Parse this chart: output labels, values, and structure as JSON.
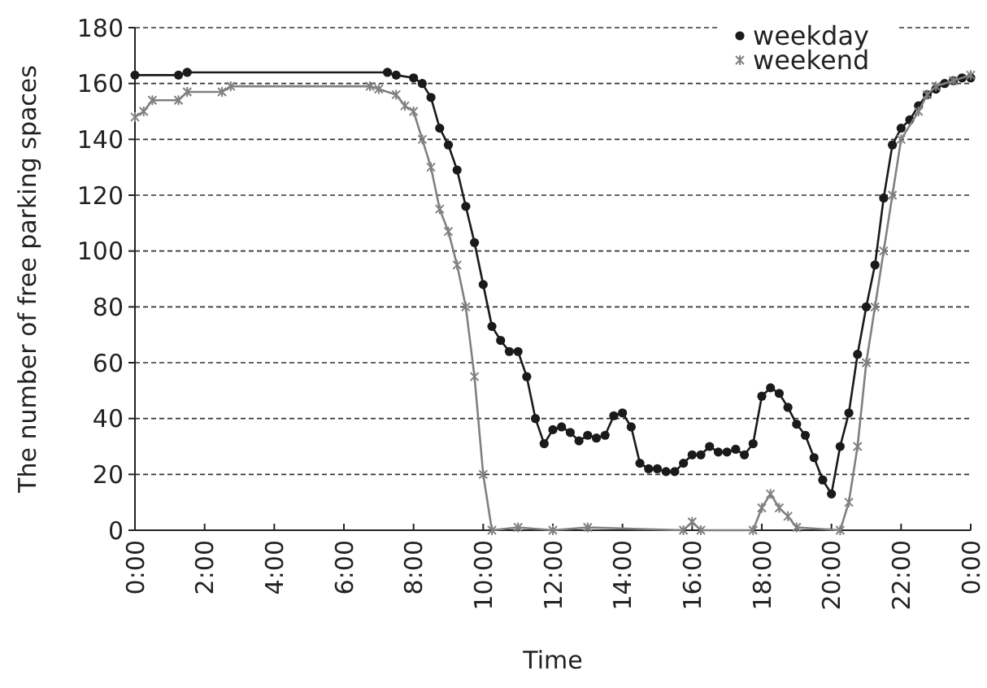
{
  "chart_data": {
    "type": "line",
    "xlabel": "Time",
    "ylabel": "The number of free parking spaces",
    "xlim": [
      0,
      24
    ],
    "xticks": [
      {
        "value": 0,
        "label": "0:00"
      },
      {
        "value": 2,
        "label": "2:00"
      },
      {
        "value": 4,
        "label": "4:00"
      },
      {
        "value": 6,
        "label": "6:00"
      },
      {
        "value": 8,
        "label": "8:00"
      },
      {
        "value": 10,
        "label": "10:00"
      },
      {
        "value": 12,
        "label": "12:00"
      },
      {
        "value": 14,
        "label": "14:00"
      },
      {
        "value": 16,
        "label": "16:00"
      },
      {
        "value": 18,
        "label": "18:00"
      },
      {
        "value": 20,
        "label": "20:00"
      },
      {
        "value": 22,
        "label": "22:00"
      },
      {
        "value": 24,
        "label": "0:00"
      }
    ],
    "ylim": [
      0,
      180
    ],
    "yticks": [
      0,
      20,
      40,
      60,
      80,
      100,
      120,
      140,
      160,
      180
    ],
    "grid": "y",
    "legend": "top right",
    "line_style": "solid",
    "series": [
      {
        "name": "weekday",
        "color": "#1a1a1a",
        "marker": "circle",
        "x": [
          0,
          1.25,
          1.5,
          7.25,
          7.5,
          8,
          8.25,
          8.5,
          8.75,
          9,
          9.25,
          9.5,
          9.75,
          10,
          10.25,
          10.5,
          10.75,
          11,
          11.25,
          11.5,
          11.75,
          12,
          12.25,
          12.5,
          12.75,
          13,
          13.25,
          13.5,
          13.75,
          14,
          14.25,
          14.5,
          14.75,
          15,
          15.25,
          15.5,
          15.75,
          16,
          16.25,
          16.5,
          16.75,
          17,
          17.25,
          17.5,
          17.75,
          18,
          18.25,
          18.5,
          18.75,
          19,
          19.25,
          19.5,
          19.75,
          20,
          20.25,
          20.5,
          20.75,
          21,
          21.25,
          21.5,
          21.75,
          22,
          22.25,
          22.5,
          22.75,
          23,
          23.25,
          23.5,
          23.75,
          24
        ],
        "values": [
          163,
          163,
          164,
          164,
          163,
          162,
          160,
          155,
          144,
          138,
          129,
          116,
          103,
          88,
          73,
          68,
          64,
          64,
          55,
          40,
          31,
          36,
          37,
          35,
          32,
          34,
          33,
          34,
          41,
          42,
          37,
          24,
          22,
          22,
          21,
          21,
          24,
          27,
          27,
          30,
          28,
          28,
          29,
          27,
          31,
          48,
          51,
          49,
          44,
          38,
          34,
          26,
          18,
          13,
          30,
          42,
          63,
          80,
          95,
          119,
          138,
          144,
          147,
          152,
          156,
          158,
          160,
          161,
          162,
          162
        ]
      },
      {
        "name": "weekend",
        "color": "#808080",
        "marker": "cross",
        "x": [
          0,
          0.25,
          0.5,
          1.25,
          1.5,
          2.5,
          2.75,
          6.75,
          7,
          7.5,
          7.75,
          8,
          8.25,
          8.5,
          8.75,
          9,
          9.25,
          9.5,
          9.75,
          10,
          10.25,
          11,
          12,
          13,
          15.75,
          16,
          16.25,
          17.75,
          18,
          18.25,
          18.5,
          18.75,
          19,
          20.25,
          20.5,
          20.75,
          21,
          21.25,
          21.5,
          21.75,
          22,
          22.5,
          22.75,
          23,
          23.5,
          24
        ],
        "values": [
          148,
          150,
          154,
          154,
          157,
          157,
          159,
          159,
          158,
          156,
          152,
          150,
          140,
          130,
          115,
          107,
          95,
          80,
          55,
          20,
          0,
          1,
          0,
          1,
          0,
          3,
          0,
          0,
          8,
          13,
          8,
          5,
          1,
          0,
          10,
          30,
          60,
          80,
          100,
          120,
          140,
          150,
          156,
          159,
          161,
          163
        ]
      }
    ]
  }
}
